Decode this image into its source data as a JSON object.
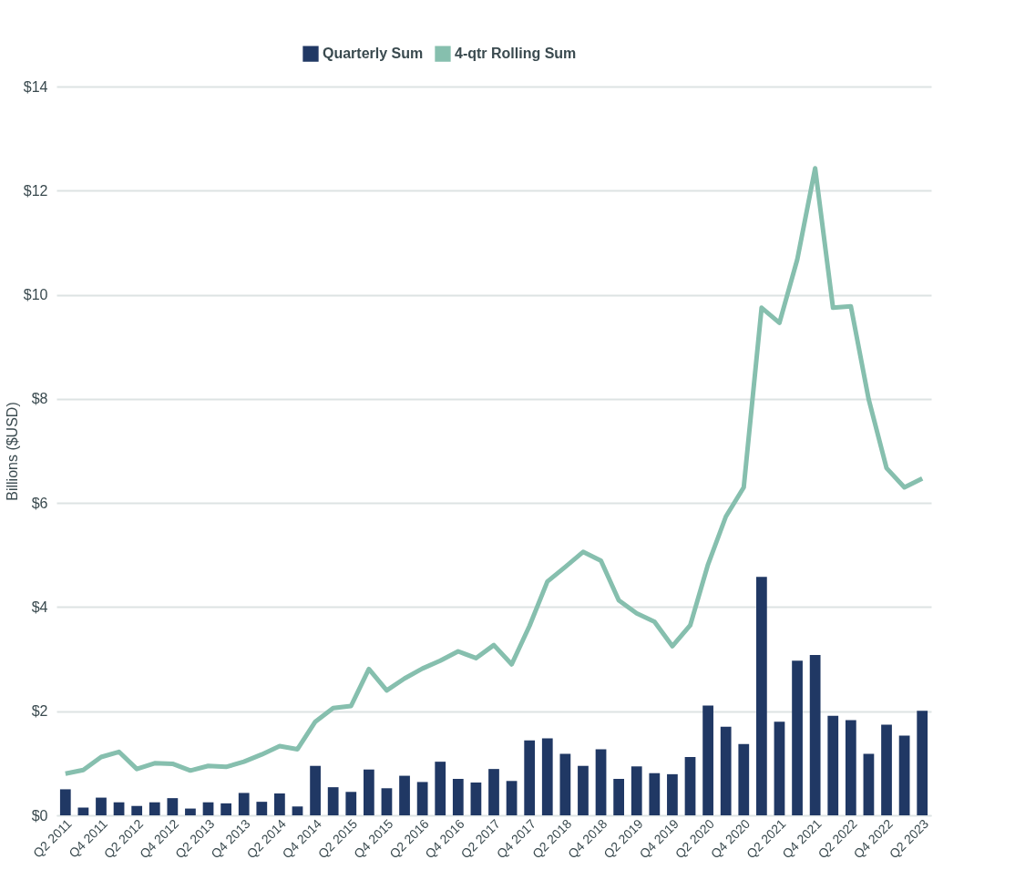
{
  "chart_data": {
    "type": "bar",
    "ylabel": "Billions ($USD)",
    "categories": [
      "Q2 2011",
      null,
      "Q4 2011",
      null,
      "Q2 2012",
      null,
      "Q4 2012",
      null,
      "Q2 2013",
      null,
      "Q4 2013",
      null,
      "Q2 2014",
      null,
      "Q4 2014",
      null,
      "Q2 2015",
      null,
      "Q4 2015",
      null,
      "Q2 2016",
      null,
      "Q4 2016",
      null,
      "Q2 2017",
      null,
      "Q4 2017",
      null,
      "Q2 2018",
      null,
      "Q4 2018",
      null,
      "Q2 2019",
      null,
      "Q4 2019",
      null,
      "Q2 2020",
      null,
      "Q4 2020",
      null,
      "Q2 2021",
      null,
      "Q4 2021",
      null,
      "Q2 2022",
      null,
      "Q4 2022",
      null,
      "Q2 2023"
    ],
    "series": [
      {
        "name": "Quarterly Sum",
        "color": "#203864",
        "values": [
          0.5,
          0.15,
          0.34,
          0.25,
          0.18,
          0.25,
          0.33,
          0.13,
          0.25,
          0.23,
          0.43,
          0.26,
          0.42,
          0.17,
          0.95,
          0.54,
          0.45,
          0.88,
          0.52,
          0.76,
          0.64,
          1.03,
          0.7,
          0.63,
          0.89,
          0.66,
          1.44,
          1.48,
          1.18,
          0.95,
          1.27,
          0.7,
          0.94,
          0.81,
          0.79,
          1.12,
          2.11,
          1.7,
          1.37,
          4.58,
          1.8,
          2.97,
          3.08,
          1.91,
          1.83,
          1.18,
          1.74,
          1.53,
          2.01
        ]
      },
      {
        "name": "4-qtr Rolling Sum",
        "type": "line",
        "color": "#86bfae",
        "values": [
          0.8,
          0.87,
          1.12,
          1.22,
          0.89,
          1.0,
          0.99,
          0.86,
          0.95,
          0.93,
          1.03,
          1.17,
          1.33,
          1.27,
          1.8,
          2.06,
          2.1,
          2.81,
          2.4,
          2.63,
          2.82,
          2.97,
          3.15,
          3.02,
          3.27,
          2.9,
          3.64,
          4.49,
          4.77,
          5.06,
          4.89,
          4.13,
          3.88,
          3.72,
          3.25,
          3.65,
          4.82,
          5.74,
          6.3,
          9.75,
          9.46,
          10.68,
          12.43,
          9.75,
          9.78,
          7.99,
          6.67,
          6.3,
          6.47
        ]
      }
    ],
    "ylim": [
      0,
      14
    ],
    "yticks": [
      {
        "value": 0,
        "label": "$0"
      },
      {
        "value": 2,
        "label": "$2"
      },
      {
        "value": 4,
        "label": "$4"
      },
      {
        "value": 6,
        "label": "$6"
      },
      {
        "value": 8,
        "label": "$8"
      },
      {
        "value": 10,
        "label": "$10"
      },
      {
        "value": 12,
        "label": "$12"
      },
      {
        "value": 14,
        "label": "$14"
      }
    ],
    "grid": "y",
    "legend": "top",
    "line_style": "solid",
    "marker": "none"
  }
}
